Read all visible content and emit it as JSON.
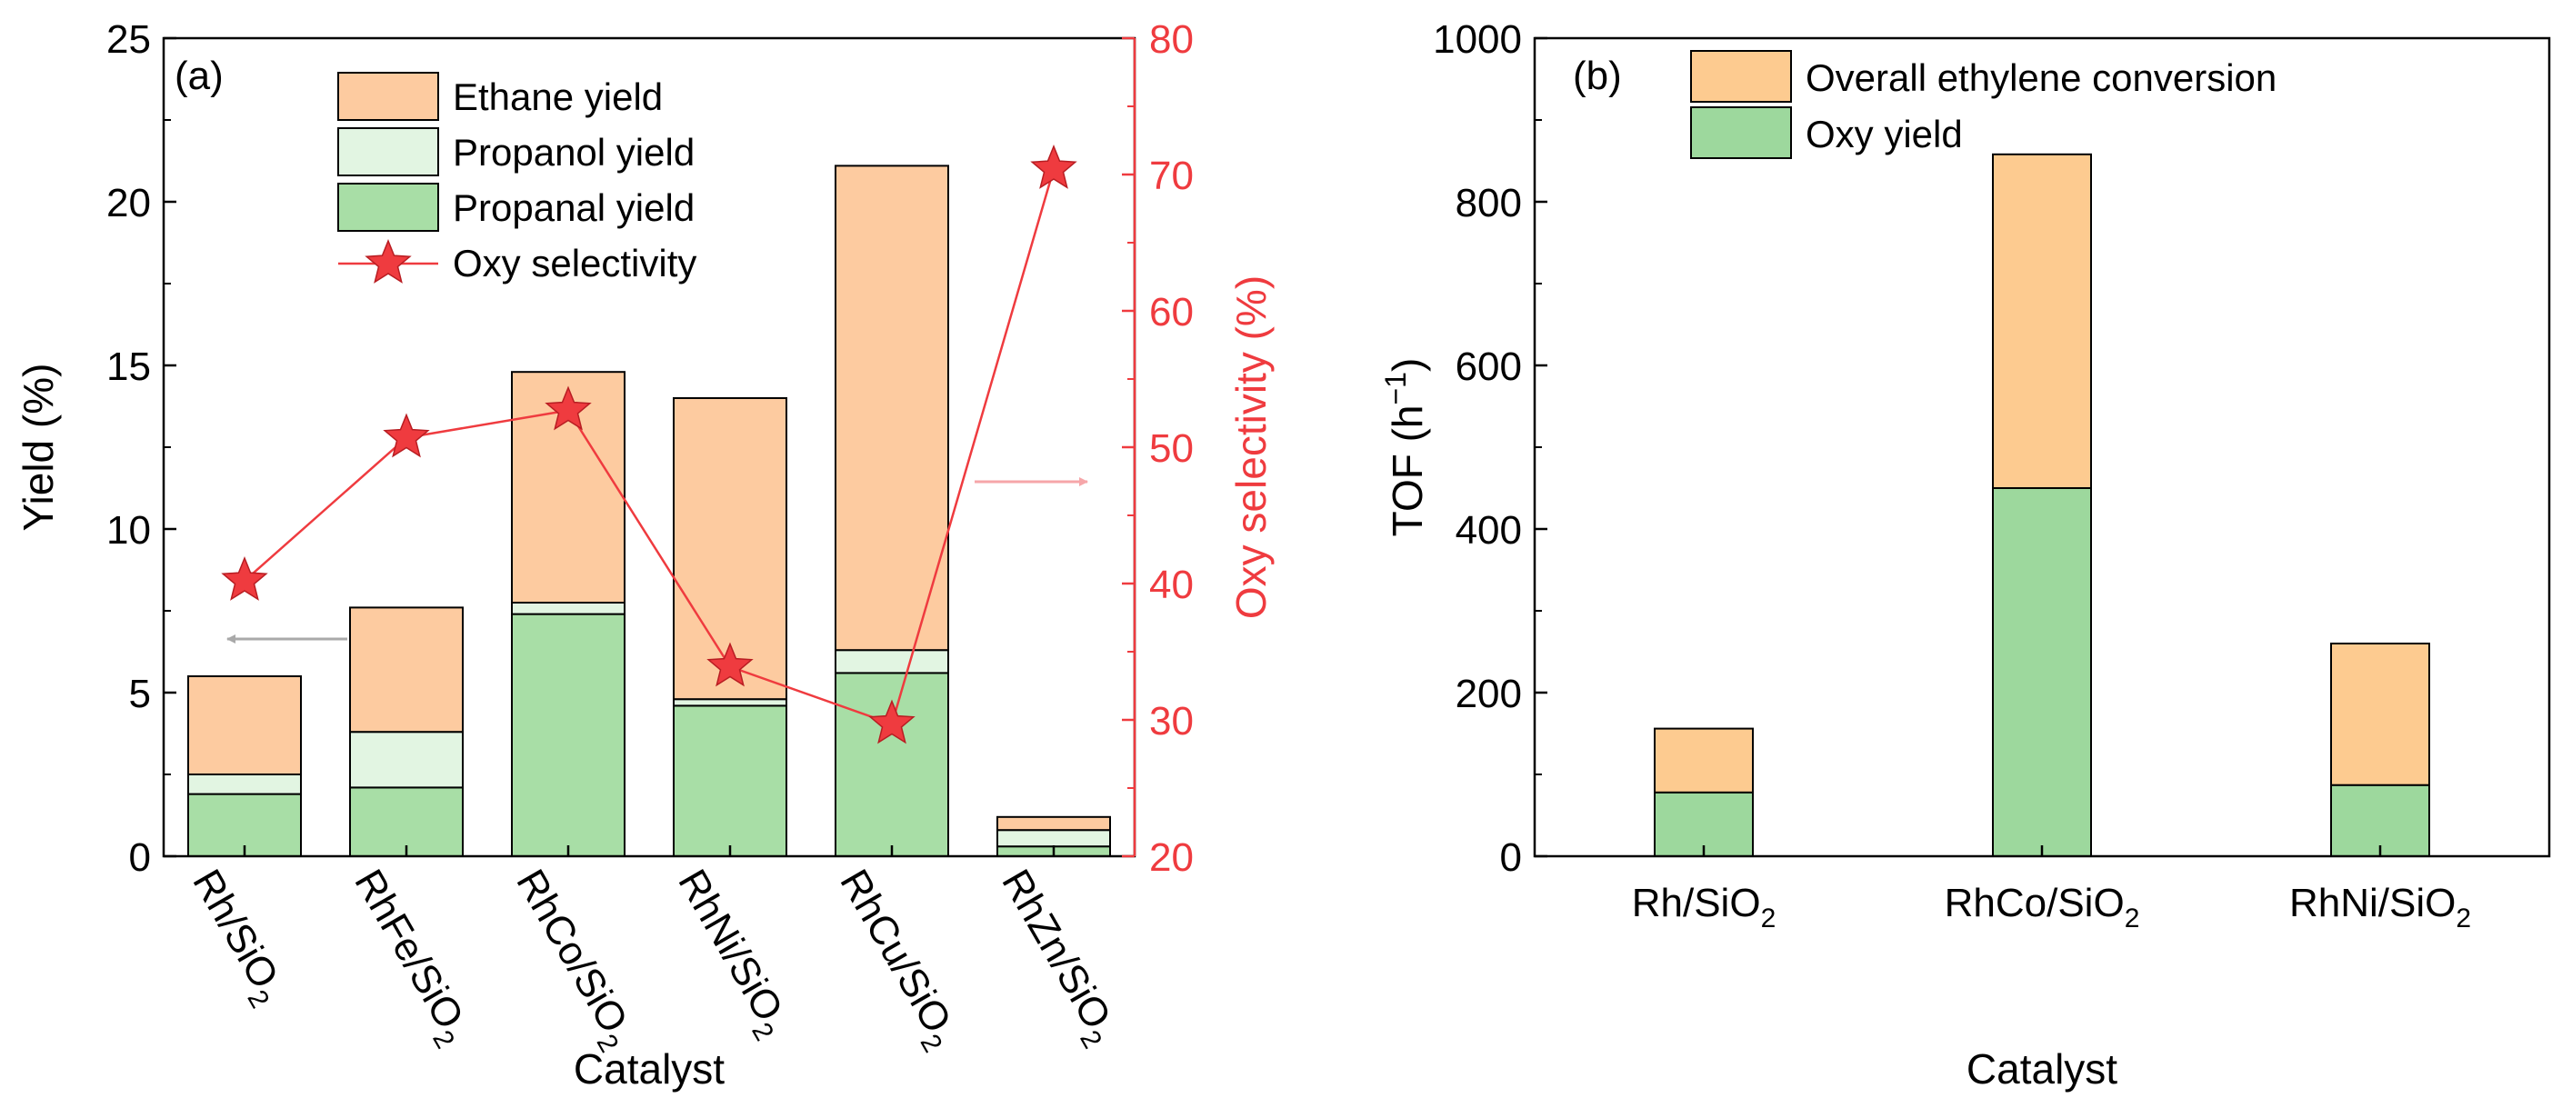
{
  "colors": {
    "ethane": "#fdcba0",
    "propanol": "#e2f5e2",
    "propanal": "#a8dea6",
    "overall": "#fdcb90",
    "oxy": "#9dd89d",
    "selectivity": "#ef3b3f",
    "arrow_left": "#a9a9a9",
    "arrow_right": "#f6a6a9",
    "axis": "#000000"
  },
  "chart_data": [
    {
      "panel": "(a)",
      "type": "bar",
      "stacked": true,
      "xlabel": "Catalyst",
      "ylabel": "Yield (%)",
      "y2label": "Oxy selectivity (%)",
      "ylim": [
        0,
        25
      ],
      "yticks": [
        "0",
        "5",
        "10",
        "15",
        "20",
        "25"
      ],
      "y2lim": [
        20,
        80
      ],
      "y2ticks": [
        "20",
        "30",
        "40",
        "50",
        "60",
        "70",
        "80"
      ],
      "categories": [
        "Rh/SiO",
        "RhFe/SiO",
        "RhCo/SiO",
        "RhNi/SiO",
        "RhCu/SiO",
        "RhZn/SiO"
      ],
      "category_subscript": "2",
      "series": [
        {
          "name": "Propanal yield",
          "values": [
            1.9,
            2.1,
            7.4,
            4.6,
            5.6,
            0.3
          ]
        },
        {
          "name": "Propanol yield",
          "values": [
            0.6,
            1.7,
            0.35,
            0.2,
            0.7,
            0.5
          ]
        },
        {
          "name": "Ethane yield",
          "values": [
            3.0,
            3.8,
            7.05,
            9.2,
            14.8,
            0.4
          ]
        }
      ],
      "line_series": {
        "name": "Oxy selectivity",
        "axis": "right",
        "values": [
          40.2,
          50.7,
          52.7,
          33.9,
          29.7,
          70.4
        ]
      },
      "legend": [
        "Ethane yield",
        "Propanol yield",
        "Propanal yield",
        "Oxy selectivity"
      ],
      "legend_position": "top-center"
    },
    {
      "panel": "(b)",
      "type": "bar",
      "stacked": true,
      "xlabel": "Catalyst",
      "ylabel": "TOF (h",
      "ylabel_sup": "−1",
      "ylabel_end": ")",
      "ylim": [
        0,
        1000
      ],
      "yticks": [
        "0",
        "200",
        "400",
        "600",
        "800",
        "1000"
      ],
      "categories": [
        "Rh/SiO",
        "RhCo/SiO",
        "RhNi/SiO"
      ],
      "category_subscript": "2",
      "series": [
        {
          "name": "Oxy yield",
          "values": [
            78,
            450,
            87
          ]
        },
        {
          "name": "Overall ethylene conversion",
          "values": [
            78,
            408,
            173
          ]
        }
      ],
      "totals": [
        156,
        858,
        260
      ],
      "legend": [
        "Overall ethylene conversion",
        "Oxy yield"
      ],
      "legend_position": "top-left"
    }
  ]
}
